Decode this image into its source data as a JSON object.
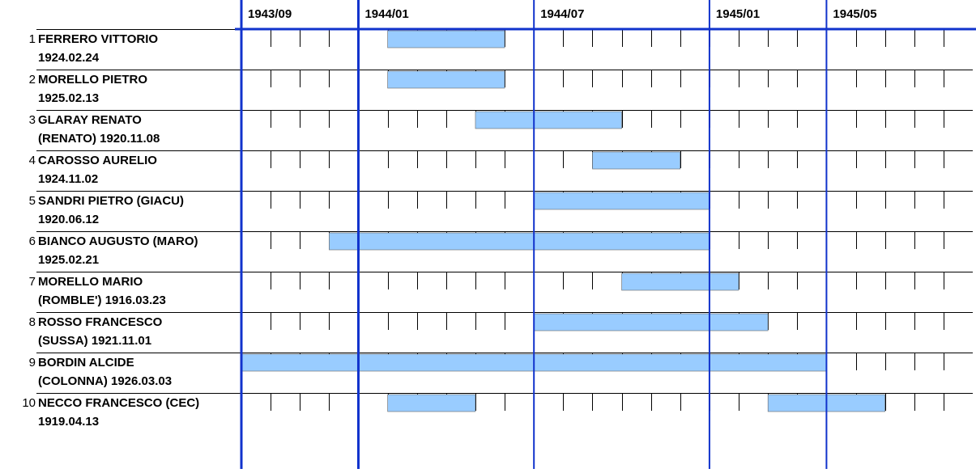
{
  "chart_data": {
    "type": "gantt",
    "xlim": [
      "1943/09",
      "1945/10"
    ],
    "xticks": [
      "1943/09",
      "1944/01",
      "1944/07",
      "1945/01",
      "1945/05"
    ],
    "bar_color": "#99ccff",
    "axis_color": "#1133cc",
    "rows": [
      {
        "number": 1,
        "lines": [
          "FERRERO VITTORIO",
          "1924.02.24"
        ],
        "periods": [
          {
            "start": "1944/02",
            "end": "1944/05"
          }
        ]
      },
      {
        "number": 2,
        "lines": [
          "MORELLO PIETRO",
          "1925.02.13"
        ],
        "periods": [
          {
            "start": "1944/02",
            "end": "1944/05"
          }
        ]
      },
      {
        "number": 3,
        "lines": [
          "GLARAY RENATO",
          "(RENATO) 1920.11.08"
        ],
        "periods": [
          {
            "start": "1944/05",
            "end": "1944/09"
          }
        ]
      },
      {
        "number": 4,
        "lines": [
          "CAROSSO AURELIO",
          "1924.11.02"
        ],
        "periods": [
          {
            "start": "1944/09",
            "end": "1944/11"
          }
        ]
      },
      {
        "number": 5,
        "lines": [
          "SANDRI PIETRO (GIACU)",
          "1920.06.12"
        ],
        "periods": [
          {
            "start": "1944/07",
            "end": "1944/12"
          }
        ]
      },
      {
        "number": 6,
        "lines": [
          "BIANCO AUGUSTO (MARO)",
          "1925.02.21"
        ],
        "periods": [
          {
            "start": "1943/12",
            "end": "1944/12"
          }
        ]
      },
      {
        "number": 7,
        "lines": [
          "MORELLO MARIO",
          "(ROMBLE') 1916.03.23"
        ],
        "periods": [
          {
            "start": "1944/10",
            "end": "1945/01"
          }
        ]
      },
      {
        "number": 8,
        "lines": [
          "ROSSO FRANCESCO",
          "(SUSSA) 1921.11.01"
        ],
        "periods": [
          {
            "start": "1944/07",
            "end": "1945/02"
          }
        ]
      },
      {
        "number": 9,
        "lines": [
          "BORDIN ALCIDE",
          "(COLONNA) 1926.03.03"
        ],
        "periods": [
          {
            "start": "1943/09",
            "end": "1945/04"
          }
        ]
      },
      {
        "number": 10,
        "lines": [
          "NECCO FRANCESCO (CEC)",
          "1919.04.13"
        ],
        "periods": [
          {
            "start": "1944/02",
            "end": "1944/04"
          },
          {
            "start": "1945/03",
            "end": "1945/06"
          }
        ]
      }
    ]
  }
}
